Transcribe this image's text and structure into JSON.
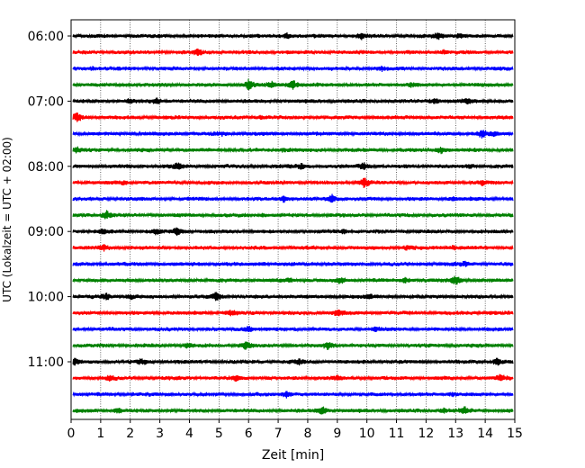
{
  "chart_data": {
    "type": "line",
    "title": "",
    "xlabel": "Zeit  [min]",
    "ylabel": "UTC (Lokalzeit = UTC + 02:00)",
    "xlim": [
      0,
      15
    ],
    "x_ticks": [
      "0",
      "1",
      "2",
      "3",
      "4",
      "5",
      "6",
      "7",
      "8",
      "9",
      "10",
      "11",
      "12",
      "13",
      "14",
      "15"
    ],
    "y_ticks": [
      "06:00",
      "07:00",
      "08:00",
      "09:00",
      "10:00",
      "11:00"
    ],
    "grid": "vertical dotted",
    "trace_interval_min": 15,
    "traces": [
      {
        "start": "06:00",
        "color": "#000000",
        "events": [
          [
            7.3,
            0.6
          ],
          [
            9.8,
            0.5
          ],
          [
            12.4,
            0.7
          ],
          [
            13.1,
            0.4
          ]
        ]
      },
      {
        "start": "06:15",
        "color": "#ff0000",
        "events": [
          [
            4.3,
            0.5
          ],
          [
            12.6,
            0.3
          ]
        ]
      },
      {
        "start": "06:30",
        "color": "#0000ff",
        "events": [
          [
            0.7,
            0.3
          ],
          [
            10.5,
            0.3
          ]
        ]
      },
      {
        "start": "06:45",
        "color": "#008000",
        "events": [
          [
            6.0,
            1.0
          ],
          [
            6.8,
            0.6
          ],
          [
            7.5,
            0.9
          ],
          [
            11.5,
            0.4
          ]
        ]
      },
      {
        "start": "07:00",
        "color": "#000000",
        "events": [
          [
            2.0,
            0.4
          ],
          [
            2.9,
            0.6
          ],
          [
            12.3,
            0.5
          ],
          [
            13.4,
            0.4
          ]
        ]
      },
      {
        "start": "07:15",
        "color": "#ff0000",
        "events": [
          [
            0.2,
            0.8
          ],
          [
            6.4,
            0.3
          ]
        ]
      },
      {
        "start": "07:30",
        "color": "#0000ff",
        "events": [
          [
            5.1,
            0.3
          ],
          [
            13.9,
            0.7
          ],
          [
            14.3,
            0.3
          ]
        ]
      },
      {
        "start": "07:45",
        "color": "#008000",
        "events": [
          [
            0.2,
            0.5
          ],
          [
            7.2,
            0.3
          ],
          [
            12.5,
            0.7
          ]
        ]
      },
      {
        "start": "08:00",
        "color": "#000000",
        "events": [
          [
            3.6,
            0.6
          ],
          [
            7.8,
            0.4
          ],
          [
            9.9,
            0.8
          ],
          [
            13.5,
            0.3
          ]
        ]
      },
      {
        "start": "08:15",
        "color": "#ff0000",
        "events": [
          [
            1.8,
            0.3
          ],
          [
            9.9,
            1.0
          ],
          [
            13.9,
            0.4
          ]
        ]
      },
      {
        "start": "08:30",
        "color": "#0000ff",
        "events": [
          [
            7.2,
            0.6
          ],
          [
            8.8,
            0.9
          ],
          [
            12.9,
            0.3
          ]
        ]
      },
      {
        "start": "08:45",
        "color": "#008000",
        "events": [
          [
            1.2,
            0.8
          ],
          [
            6.5,
            0.3
          ]
        ]
      },
      {
        "start": "09:00",
        "color": "#000000",
        "events": [
          [
            1.1,
            0.4
          ],
          [
            2.9,
            0.5
          ],
          [
            3.6,
            0.8
          ],
          [
            9.2,
            0.3
          ]
        ]
      },
      {
        "start": "09:15",
        "color": "#ff0000",
        "events": [
          [
            1.1,
            0.5
          ],
          [
            11.4,
            0.4
          ],
          [
            12.9,
            0.3
          ]
        ]
      },
      {
        "start": "09:30",
        "color": "#0000ff",
        "events": [
          [
            6.5,
            0.3
          ],
          [
            13.3,
            0.3
          ]
        ]
      },
      {
        "start": "09:45",
        "color": "#008000",
        "events": [
          [
            7.4,
            0.3
          ],
          [
            9.1,
            0.5
          ],
          [
            11.3,
            0.5
          ],
          [
            13.0,
            0.9
          ]
        ]
      },
      {
        "start": "10:00",
        "color": "#000000",
        "events": [
          [
            1.2,
            0.6
          ],
          [
            2.0,
            0.4
          ],
          [
            4.9,
            0.8
          ],
          [
            10.1,
            0.3
          ]
        ]
      },
      {
        "start": "10:15",
        "color": "#ff0000",
        "events": [
          [
            5.4,
            0.4
          ],
          [
            9.0,
            0.6
          ],
          [
            14.2,
            0.3
          ]
        ]
      },
      {
        "start": "10:30",
        "color": "#0000ff",
        "events": [
          [
            6.0,
            0.6
          ],
          [
            10.3,
            0.3
          ]
        ]
      },
      {
        "start": "10:45",
        "color": "#008000",
        "events": [
          [
            3.9,
            0.4
          ],
          [
            5.9,
            0.8
          ],
          [
            8.7,
            0.7
          ]
        ]
      },
      {
        "start": "11:00",
        "color": "#000000",
        "events": [
          [
            0.1,
            0.7
          ],
          [
            2.4,
            0.5
          ],
          [
            7.7,
            0.4
          ],
          [
            14.4,
            0.6
          ]
        ]
      },
      {
        "start": "11:15",
        "color": "#ff0000",
        "events": [
          [
            1.3,
            0.4
          ],
          [
            5.6,
            0.5
          ],
          [
            9.0,
            0.4
          ],
          [
            14.5,
            0.6
          ]
        ]
      },
      {
        "start": "11:30",
        "color": "#0000ff",
        "events": [
          [
            7.3,
            0.7
          ],
          [
            12.9,
            0.3
          ]
        ]
      },
      {
        "start": "11:45",
        "color": "#008000",
        "events": [
          [
            1.6,
            0.5
          ],
          [
            8.5,
            0.9
          ],
          [
            12.6,
            0.4
          ],
          [
            13.3,
            0.7
          ]
        ]
      }
    ]
  }
}
